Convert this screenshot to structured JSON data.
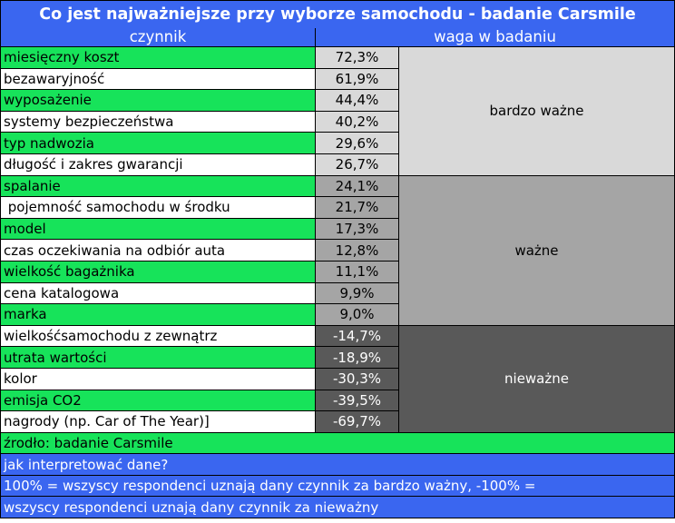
{
  "title": "Co jest najważniejsze przy wyborze samochodu - badanie Carsmile",
  "headers": {
    "factor": "czynnik",
    "weight": "waga w badaniu"
  },
  "rows": [
    {
      "name": "miesięczny koszt",
      "value": "72,3%"
    },
    {
      "name": "bezawaryjność",
      "value": "61,9%"
    },
    {
      "name": "wyposażenie",
      "value": "44,4%"
    },
    {
      "name": "systemy bezpieczeństwa",
      "value": "40,2%"
    },
    {
      "name": "typ nadwozia",
      "value": "29,6%"
    },
    {
      "name": "długość i zakres gwarancji",
      "value": "26,7%"
    },
    {
      "name": "spalanie",
      "value": "24,1%"
    },
    {
      "name": " pojemność samochodu w środku",
      "value": "21,7%"
    },
    {
      "name": "model",
      "value": "17,3%"
    },
    {
      "name": "czas oczekiwania na odbiór auta",
      "value": "12,8%"
    },
    {
      "name": "wielkość bagażnika",
      "value": "11,1%"
    },
    {
      "name": "cena katalogowa",
      "value": "9,9%"
    },
    {
      "name": "marka",
      "value": "9,0%"
    },
    {
      "name": "wielkośćsamochodu z zewnątrz",
      "value": "-14,7%"
    },
    {
      "name": "utrata wartości",
      "value": "-18,9%"
    },
    {
      "name": "kolor",
      "value": "-30,3%"
    },
    {
      "name": "emisja CO2",
      "value": "-39,5%"
    },
    {
      "name": "nagrody (np. Car of The Year)]",
      "value": "-69,7%"
    }
  ],
  "groups": {
    "very_important": "bardzo ważne",
    "important": "ważne",
    "unimportant": "nieważne"
  },
  "source": "źrodło: badanie Carsmile",
  "footer": {
    "question": "jak interpretować dane?",
    "line1": "100% = wszyscy respondenci uznają dany czynnik za bardzo ważny, -100% =",
    "line2": "wszyscy respondenci uznają dany czynnik za nieważny"
  },
  "colors": {
    "blue": "#3a66f0",
    "green": "#17e35a",
    "gray_light": "#d9d9d9",
    "gray_mid": "#a5a5a5",
    "gray_dark": "#595959"
  }
}
